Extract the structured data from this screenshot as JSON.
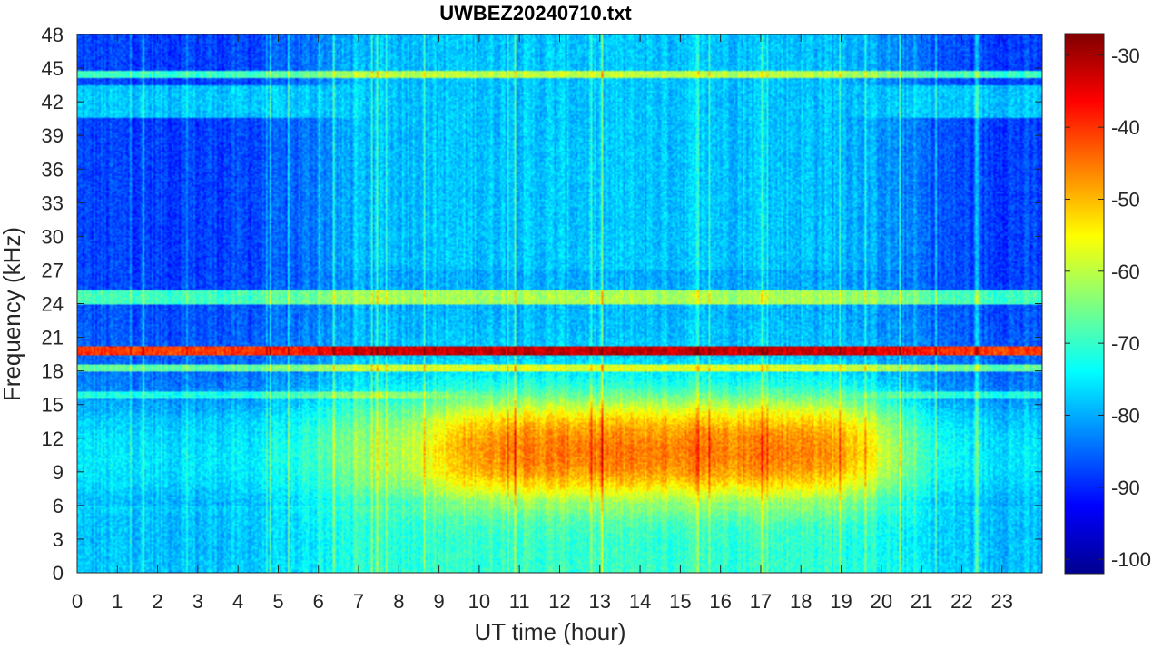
{
  "chart_data": {
    "type": "heatmap",
    "title": "UWBEZ20240710.txt",
    "xlabel": "UT time (hour)",
    "ylabel": "Frequency (kHz)",
    "xlim": [
      0,
      24
    ],
    "ylim": [
      0,
      48
    ],
    "x_ticks": [
      0,
      1,
      2,
      3,
      4,
      5,
      6,
      7,
      8,
      9,
      10,
      11,
      12,
      13,
      14,
      15,
      16,
      17,
      18,
      19,
      20,
      21,
      22,
      23
    ],
    "y_ticks": [
      0,
      3,
      6,
      9,
      12,
      15,
      18,
      21,
      24,
      27,
      30,
      33,
      36,
      39,
      42,
      45,
      48
    ],
    "colorbar": {
      "colormap": "jet",
      "range": [
        -102,
        -27
      ],
      "ticks": [
        -30,
        -40,
        -50,
        -60,
        -70,
        -80,
        -90,
        -100
      ]
    },
    "features": {
      "persistent_lines_khz": [
        19.8,
        18.3,
        24.9,
        24.2,
        44.4
      ],
      "quiet_background_db": -88,
      "enhanced_band_khz": [
        7,
        15
      ],
      "enhanced_band_hours": [
        9,
        20
      ],
      "enhanced_band_level_db": -50
    }
  }
}
